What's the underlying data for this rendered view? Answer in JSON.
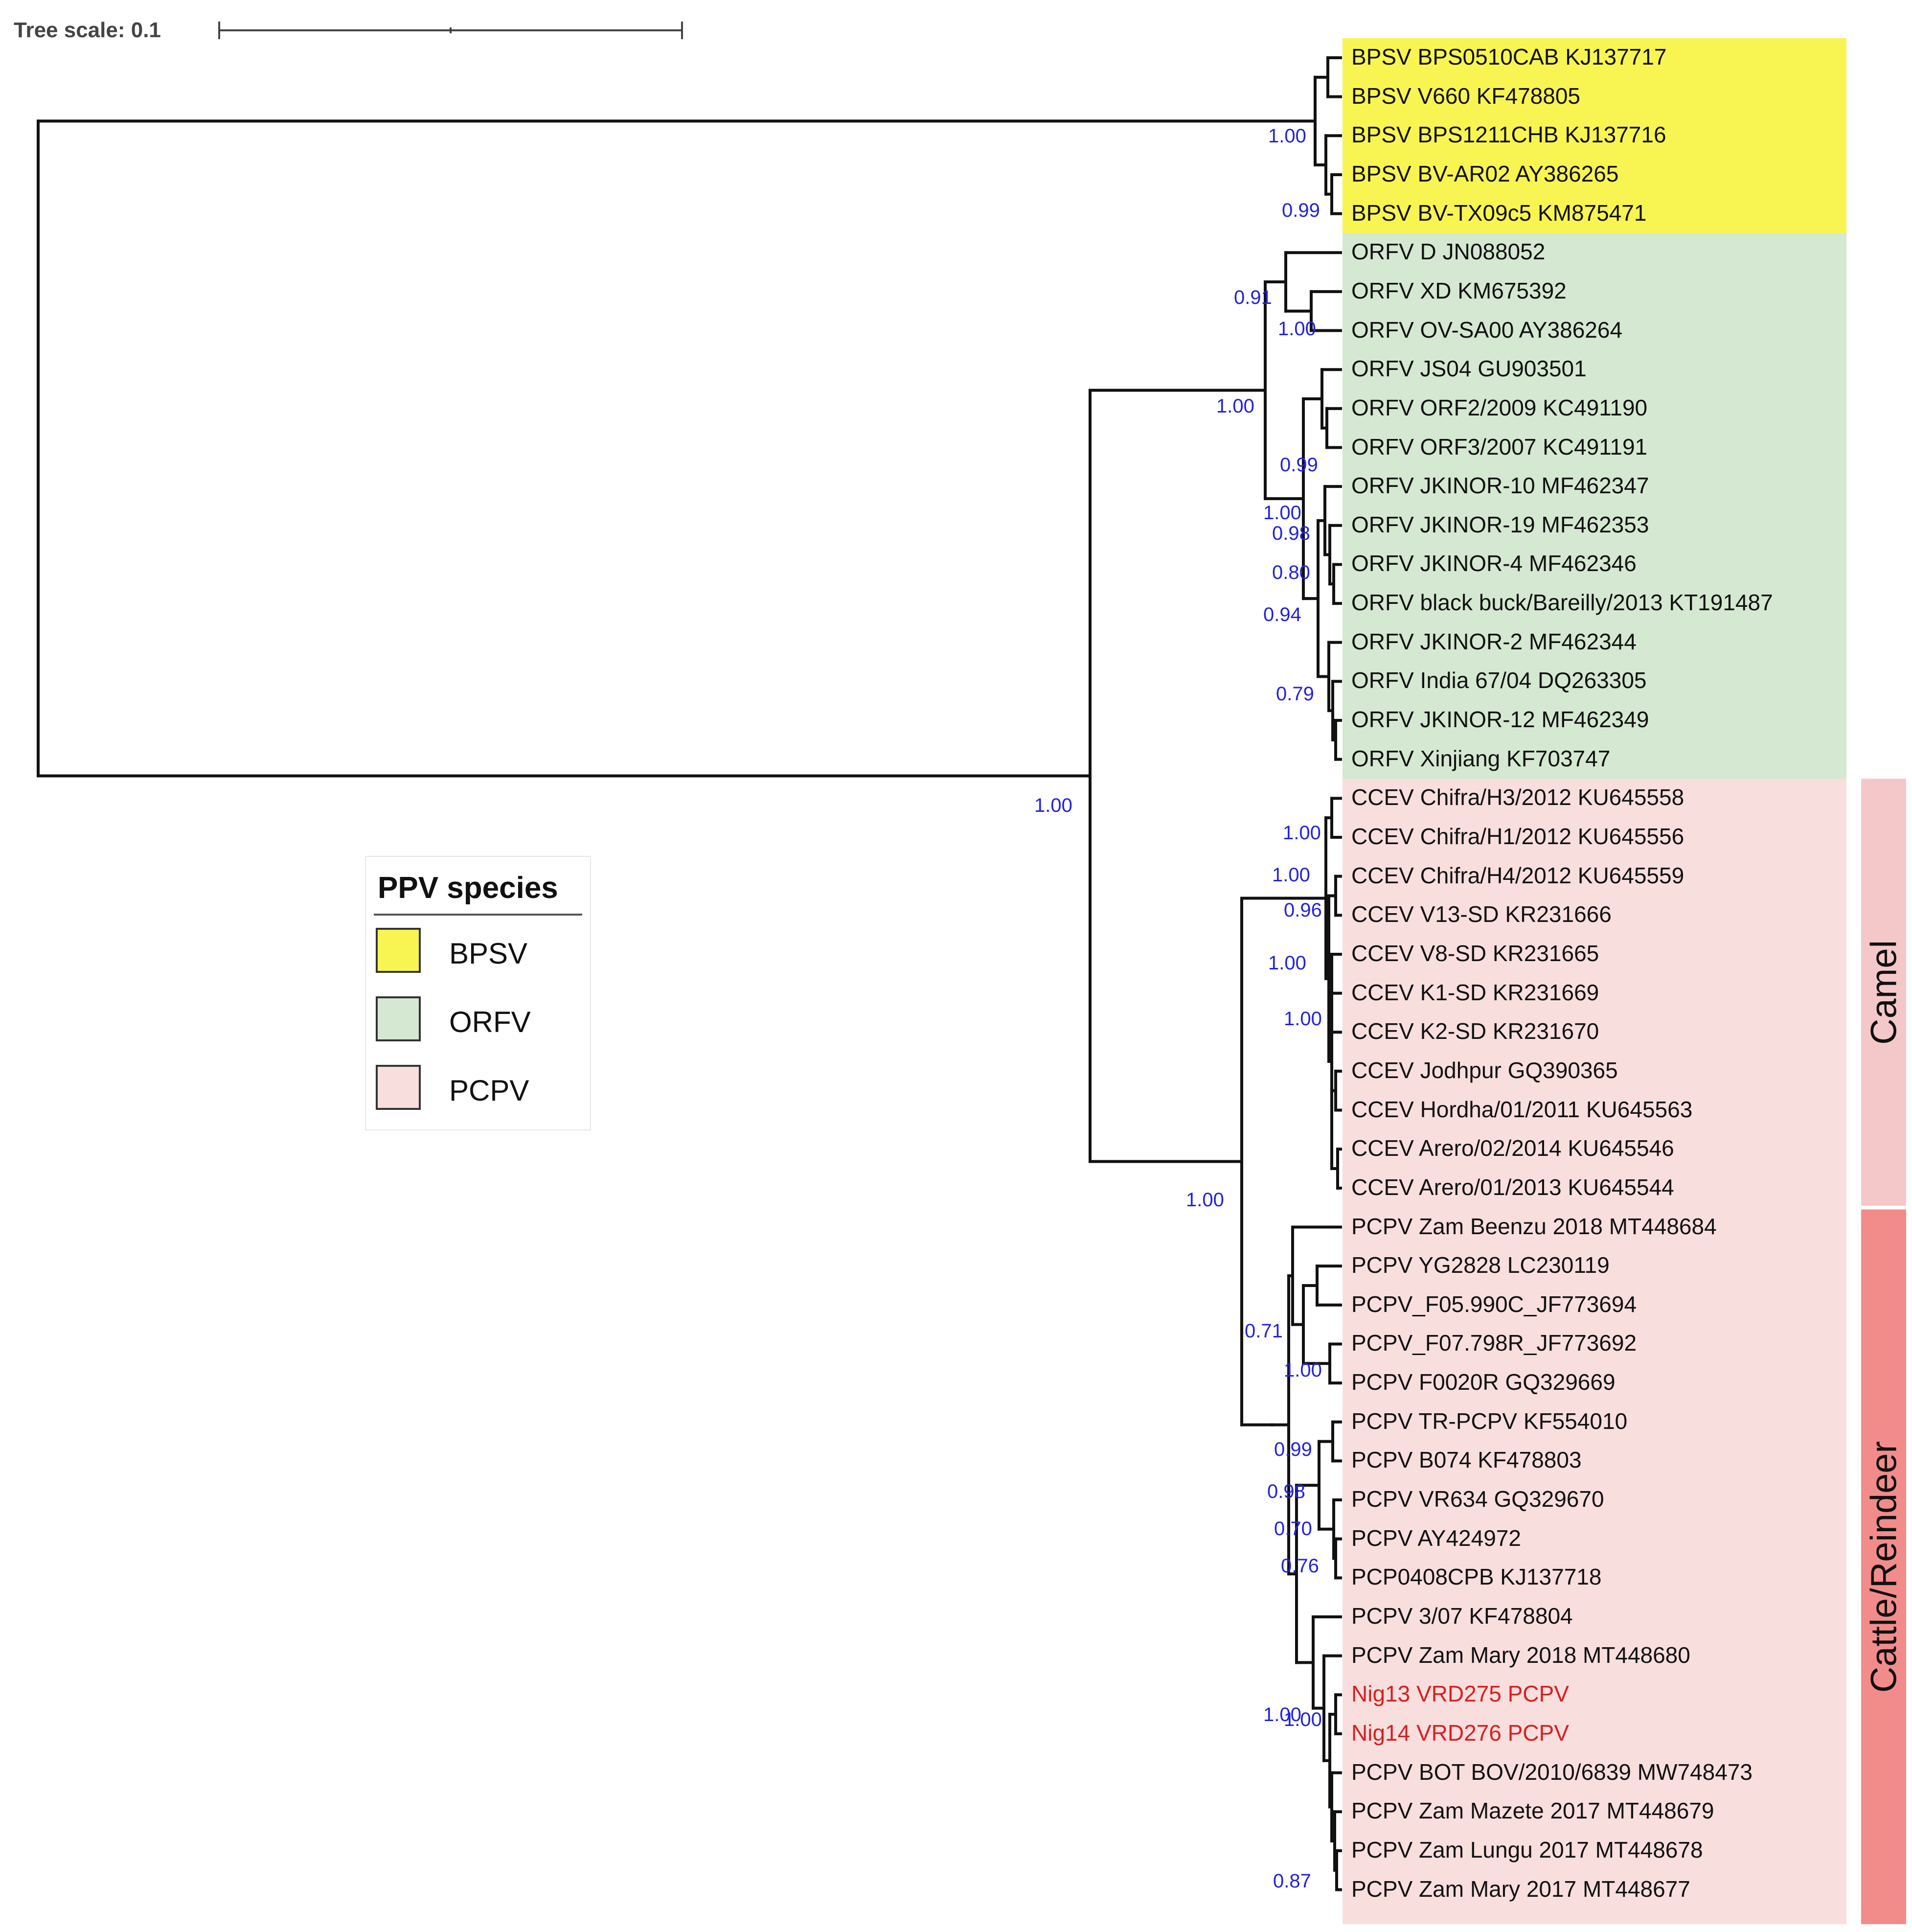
{
  "scale_label": "Tree scale: 0.1",
  "legend": {
    "title": "PPV species",
    "items": [
      {
        "key": "BPSV",
        "label": "BPSV",
        "color": "#f8f552"
      },
      {
        "key": "ORFV",
        "label": "ORFV",
        "color": "#d5e8d2"
      },
      {
        "key": "PCPV",
        "label": "PCPV",
        "color": "#f9dede"
      }
    ]
  },
  "hosts": [
    {
      "label": "Camel",
      "color": "#f4c8c9"
    },
    {
      "label": "Cattle/Reindeer",
      "color": "#f28c8b"
    }
  ],
  "taxa": [
    {
      "label": "BPSV BPS0510CAB KJ137717",
      "group": "BPSV"
    },
    {
      "label": "BPSV V660 KF478805",
      "group": "BPSV"
    },
    {
      "label": "BPSV BPS1211CHB KJ137716",
      "group": "BPSV"
    },
    {
      "label": "BPSV BV-AR02 AY386265",
      "group": "BPSV"
    },
    {
      "label": "BPSV BV-TX09c5 KM875471",
      "group": "BPSV"
    },
    {
      "label": "ORFV D JN088052",
      "group": "ORFV"
    },
    {
      "label": "ORFV XD KM675392",
      "group": "ORFV"
    },
    {
      "label": "ORFV OV-SA00 AY386264",
      "group": "ORFV"
    },
    {
      "label": "ORFV JS04 GU903501",
      "group": "ORFV"
    },
    {
      "label": "ORFV ORF2/2009 KC491190",
      "group": "ORFV"
    },
    {
      "label": "ORFV ORF3/2007 KC491191",
      "group": "ORFV"
    },
    {
      "label": "ORFV JKINOR-10 MF462347",
      "group": "ORFV"
    },
    {
      "label": "ORFV JKINOR-19 MF462353",
      "group": "ORFV"
    },
    {
      "label": "ORFV JKINOR-4 MF462346",
      "group": "ORFV"
    },
    {
      "label": "ORFV black buck/Bareilly/2013 KT191487",
      "group": "ORFV"
    },
    {
      "label": "ORFV JKINOR-2 MF462344",
      "group": "ORFV"
    },
    {
      "label": "ORFV India 67/04 DQ263305",
      "group": "ORFV"
    },
    {
      "label": "ORFV JKINOR-12 MF462349",
      "group": "ORFV"
    },
    {
      "label": "ORFV Xinjiang KF703747",
      "group": "ORFV"
    },
    {
      "label": "CCEV Chifra/H3/2012 KU645558",
      "group": "PCPV"
    },
    {
      "label": "CCEV Chifra/H1/2012 KU645556",
      "group": "PCPV"
    },
    {
      "label": "CCEV Chifra/H4/2012 KU645559",
      "group": "PCPV"
    },
    {
      "label": "CCEV V13-SD KR231666",
      "group": "PCPV"
    },
    {
      "label": "CCEV V8-SD KR231665",
      "group": "PCPV"
    },
    {
      "label": "CCEV K1-SD KR231669",
      "group": "PCPV"
    },
    {
      "label": "CCEV K2-SD KR231670",
      "group": "PCPV"
    },
    {
      "label": "CCEV Jodhpur GQ390365",
      "group": "PCPV"
    },
    {
      "label": "CCEV Hordha/01/2011 KU645563",
      "group": "PCPV"
    },
    {
      "label": "CCEV Arero/02/2014 KU645546",
      "group": "PCPV"
    },
    {
      "label": "CCEV Arero/01/2013 KU645544",
      "group": "PCPV"
    },
    {
      "label": "PCPV Zam Beenzu 2018 MT448684",
      "group": "PCPV"
    },
    {
      "label": "PCPV YG2828 LC230119",
      "group": "PCPV"
    },
    {
      "label": "PCPV_F05.990C_JF773694",
      "group": "PCPV"
    },
    {
      "label": "PCPV_F07.798R_JF773692",
      "group": "PCPV"
    },
    {
      "label": "PCPV F0020R GQ329669",
      "group": "PCPV"
    },
    {
      "label": "PCPV TR-PCPV KF554010",
      "group": "PCPV"
    },
    {
      "label": "PCPV B074 KF478803",
      "group": "PCPV"
    },
    {
      "label": "PCPV VR634 GQ329670",
      "group": "PCPV"
    },
    {
      "label": "PCPV AY424972",
      "group": "PCPV"
    },
    {
      "label": "PCP0408CPB KJ137718",
      "group": "PCPV"
    },
    {
      "label": "PCPV 3/07 KF478804",
      "group": "PCPV"
    },
    {
      "label": "PCPV Zam Mary 2018 MT448680",
      "group": "PCPV"
    },
    {
      "label": "Nig13 VRD275 PCPV",
      "group": "PCPV",
      "highlight": true
    },
    {
      "label": "Nig14 VRD276 PCPV",
      "group": "PCPV",
      "highlight": true
    },
    {
      "label": "PCPV BOT BOV/2010/6839 MW748473",
      "group": "PCPV"
    },
    {
      "label": "PCPV Zam Mazete 2017 MT448679",
      "group": "PCPV"
    },
    {
      "label": "PCPV Zam Lungu 2017 MT448678",
      "group": "PCPV"
    },
    {
      "label": "PCPV Zam Mary 2017 MT448677",
      "group": "PCPV"
    }
  ],
  "supports": [
    "1.00",
    "0.99",
    "0.91",
    "1.00",
    "1.00",
    "0.99",
    "1.00",
    "0.98",
    "0.80",
    "0.94",
    "0.79",
    "1.00",
    "1.00",
    "0.96",
    "1.00",
    "1.00",
    "1.00",
    "1.00",
    "0.71",
    "1.00",
    "0.99",
    "0.98",
    "0.70",
    "0.76",
    "1.00",
    "1.00",
    "0.87"
  ]
}
